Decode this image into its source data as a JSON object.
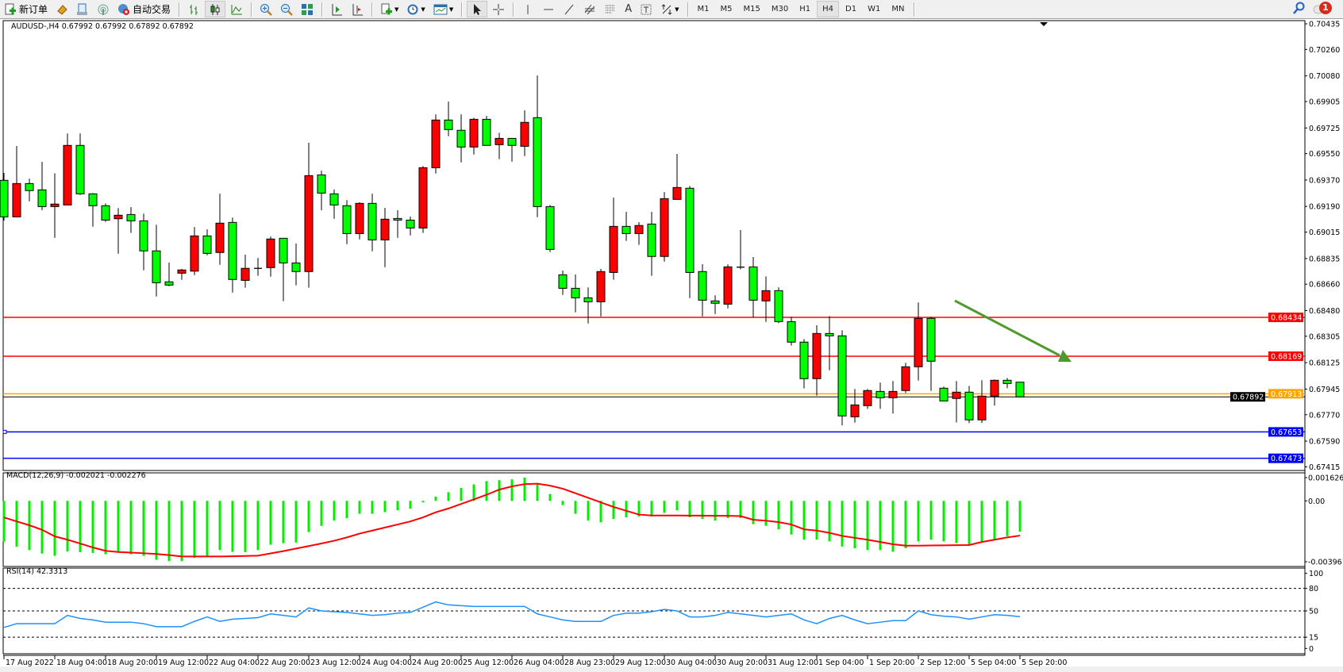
{
  "toolbar": {
    "new_order_label": "新订单",
    "auto_trading_label": "自动交易",
    "icons": [
      "new-order-icon",
      "market-watch-icon",
      "data-window-icon",
      "signals-icon",
      "auto-trading-icon",
      "bar-chart-icon",
      "candlestick-icon",
      "line-chart-icon",
      "zoom-in-icon",
      "zoom-out-icon",
      "tile-windows-icon",
      "auto-scroll-icon",
      "chart-shift-icon",
      "indicators-icon",
      "periods-icon",
      "templates-icon",
      "cursor-icon",
      "crosshair-icon",
      "vertical-line-icon",
      "horizontal-line-icon",
      "trendline-icon",
      "equidistant-channel-icon",
      "fibonacci-icon",
      "text-icon",
      "text-label-icon",
      "arrows-icon"
    ],
    "text_tool_label": "A",
    "timeframes": [
      "M1",
      "M5",
      "M15",
      "M30",
      "H1",
      "H4",
      "D1",
      "W1",
      "MN"
    ],
    "active_timeframe": "H4",
    "notification_count": "1"
  },
  "chart": {
    "title": "AUDUSD-,H4  0.67992 0.67992 0.67892 0.67892",
    "colors": {
      "bull_body": "#ff0000",
      "bear_body": "#00ff00",
      "wick": "#000000",
      "arrow": "#4f9a2f",
      "macd_hist": "#00ee00",
      "macd_signal": "#ff0000",
      "rsi": "#1e90ff"
    }
  },
  "chart_data": [
    {
      "type": "candlestick",
      "symbol": "AUDUSD-",
      "timeframe": "H4",
      "ohlc_fields": [
        "open",
        "high",
        "low",
        "close"
      ],
      "ohlc": [
        [
          0.69368,
          0.69418,
          0.69094,
          0.69119
        ],
        [
          0.69119,
          0.69602,
          0.69119,
          0.69346
        ],
        [
          0.69346,
          0.6938,
          0.69225,
          0.69298
        ],
        [
          0.69303,
          0.69494,
          0.69164,
          0.69189
        ],
        [
          0.69189,
          0.69416,
          0.68976,
          0.69206
        ],
        [
          0.692,
          0.69687,
          0.692,
          0.69606
        ],
        [
          0.69606,
          0.69687,
          0.69268,
          0.69276
        ],
        [
          0.69276,
          0.69281,
          0.69052,
          0.69195
        ],
        [
          0.69195,
          0.69211,
          0.69084,
          0.69097
        ],
        [
          0.69106,
          0.69179,
          0.68868,
          0.6913
        ],
        [
          0.69135,
          0.69186,
          0.69009,
          0.69092
        ],
        [
          0.69092,
          0.69141,
          0.68755,
          0.68887
        ],
        [
          0.68887,
          0.69065,
          0.68576,
          0.6867
        ],
        [
          0.68676,
          0.68807,
          0.68646,
          0.68654
        ],
        [
          0.68735,
          0.68764,
          0.6869,
          0.68757
        ],
        [
          0.68749,
          0.6905,
          0.68722,
          0.68989
        ],
        [
          0.68989,
          0.69034,
          0.68857,
          0.6887
        ],
        [
          0.68876,
          0.69277,
          0.68792,
          0.69076
        ],
        [
          0.69081,
          0.69114,
          0.68603,
          0.68692
        ],
        [
          0.68686,
          0.68861,
          0.68636,
          0.68768
        ],
        [
          0.68768,
          0.68839,
          0.68717,
          0.68768
        ],
        [
          0.68773,
          0.68985,
          0.68711,
          0.68968
        ],
        [
          0.68973,
          0.68973,
          0.68544,
          0.68805
        ],
        [
          0.68805,
          0.68937,
          0.68652,
          0.68746
        ],
        [
          0.68746,
          0.69624,
          0.68636,
          0.694
        ],
        [
          0.69405,
          0.69434,
          0.69164,
          0.69281
        ],
        [
          0.69276,
          0.69305,
          0.69106,
          0.692
        ],
        [
          0.69195,
          0.69233,
          0.68933,
          0.69005
        ],
        [
          0.69005,
          0.69218,
          0.68965,
          0.69211
        ],
        [
          0.69211,
          0.69277,
          0.68884,
          0.68962
        ],
        [
          0.68962,
          0.6918,
          0.68776,
          0.69103
        ],
        [
          0.69108,
          0.69164,
          0.68976,
          0.69097
        ],
        [
          0.69097,
          0.69121,
          0.68992,
          0.69043
        ],
        [
          0.69043,
          0.69465,
          0.69009,
          0.69454
        ],
        [
          0.69454,
          0.69818,
          0.69414,
          0.69779
        ],
        [
          0.69779,
          0.69905,
          0.69669,
          0.69714
        ],
        [
          0.69709,
          0.69818,
          0.6949,
          0.69595
        ],
        [
          0.69595,
          0.69795,
          0.69544,
          0.69784
        ],
        [
          0.69784,
          0.69807,
          0.69606,
          0.69606
        ],
        [
          0.69611,
          0.69692,
          0.69512,
          0.69654
        ],
        [
          0.69654,
          0.69654,
          0.69495,
          0.69606
        ],
        [
          0.696,
          0.69845,
          0.69533,
          0.69763
        ],
        [
          0.69795,
          0.70083,
          0.69117,
          0.69189
        ],
        [
          0.69189,
          0.692,
          0.68879,
          0.68897
        ],
        [
          0.68724,
          0.68753,
          0.68587,
          0.68632
        ],
        [
          0.68632,
          0.68726,
          0.68468,
          0.68567
        ],
        [
          0.68567,
          0.68638,
          0.68392,
          0.6854
        ],
        [
          0.6854,
          0.68764,
          0.68441,
          0.68746
        ],
        [
          0.6874,
          0.6925,
          0.6869,
          0.69054
        ],
        [
          0.69054,
          0.69153,
          0.68955,
          0.69005
        ],
        [
          0.69005,
          0.69083,
          0.68928,
          0.6906
        ],
        [
          0.6907,
          0.69153,
          0.68717,
          0.68849
        ],
        [
          0.68849,
          0.69288,
          0.68814,
          0.69243
        ],
        [
          0.69238,
          0.69548,
          0.69238,
          0.69319
        ],
        [
          0.69314,
          0.6933,
          0.68565,
          0.6874
        ],
        [
          0.68746,
          0.68796,
          0.68441,
          0.68551
        ],
        [
          0.68546,
          0.68584,
          0.68457,
          0.6853
        ],
        [
          0.68524,
          0.68795,
          0.68495,
          0.68778
        ],
        [
          0.68776,
          0.69029,
          0.68762,
          0.68776
        ],
        [
          0.68778,
          0.68845,
          0.68434,
          0.68551
        ],
        [
          0.68546,
          0.68713,
          0.68403,
          0.68616
        ],
        [
          0.68616,
          0.68639,
          0.68394,
          0.68405
        ],
        [
          0.68405,
          0.68438,
          0.68241,
          0.68265
        ],
        [
          0.68265,
          0.68286,
          0.67949,
          0.68016
        ],
        [
          0.68016,
          0.6838,
          0.679,
          0.68324
        ],
        [
          0.68324,
          0.68443,
          0.68073,
          0.68308
        ],
        [
          0.68308,
          0.68346,
          0.67697,
          0.67762
        ],
        [
          0.67756,
          0.67946,
          0.67716,
          0.67837
        ],
        [
          0.67832,
          0.67946,
          0.6781,
          0.67935
        ],
        [
          0.67929,
          0.67989,
          0.6781,
          0.67886
        ],
        [
          0.67886,
          0.68,
          0.67778,
          0.67929
        ],
        [
          0.67935,
          0.68124,
          0.67918,
          0.68097
        ],
        [
          0.68097,
          0.68535,
          0.68003,
          0.68427
        ],
        [
          0.68427,
          0.68438,
          0.67933,
          0.68135
        ],
        [
          0.67951,
          0.67962,
          0.67864,
          0.67864
        ],
        [
          0.67881,
          0.68,
          0.67718,
          0.67924
        ],
        [
          0.67924,
          0.67967,
          0.67713,
          0.67735
        ],
        [
          0.67735,
          0.68005,
          0.67713,
          0.67897
        ],
        [
          0.67897,
          0.6801,
          0.67832,
          0.68005
        ],
        [
          0.68005,
          0.68021,
          0.67951,
          0.67983
        ],
        [
          0.67992,
          0.67992,
          0.67892,
          0.67892
        ]
      ],
      "ylim": [
        0.67415,
        0.70435
      ],
      "y_ticks": [
        "0.70435",
        "0.70260",
        "0.70080",
        "0.69905",
        "0.69725",
        "0.69550",
        "0.69370",
        "0.69190",
        "0.69015",
        "0.68835",
        "0.68660",
        "0.68480",
        "0.68305",
        "0.68125",
        "0.67945",
        "0.67770",
        "0.67590",
        "0.67415"
      ],
      "x_tick_every_bars": 4,
      "x_ticks": [
        "17 Aug 2022",
        "18 Aug 04:00",
        "18 Aug 20:00",
        "19 Aug 12:00",
        "22 Aug 04:00",
        "22 Aug 20:00",
        "23 Aug 12:00",
        "24 Aug 04:00",
        "24 Aug 20:00",
        "25 Aug 12:00",
        "26 Aug 04:00",
        "28 Aug 23:00",
        "29 Aug 12:00",
        "30 Aug 04:00",
        "30 Aug 20:00",
        "31 Aug 12:00",
        "1 Sep 04:00",
        "1 Sep 20:00",
        "2 Sep 12:00",
        "5 Sep 04:00",
        "5 Sep 20:00"
      ],
      "levels": [
        {
          "price": "0.68434",
          "color": "#ff0000"
        },
        {
          "price": "0.68169",
          "color": "#ff0000"
        },
        {
          "price": "0.67913",
          "color": "#ffa500"
        },
        {
          "price": "0.67653",
          "color": "#0000ff"
        },
        {
          "price": "0.67473",
          "color": "#0000ff"
        }
      ],
      "bid": {
        "price": "0.67892",
        "color": "#000000"
      }
    },
    {
      "type": "bar",
      "title": "MACD(12,26,9) -0.002021 -0.002276",
      "ylim": [
        -0.003961,
        0.001626
      ],
      "y_ticks": [
        "0.001626",
        "0.00",
        "-0.003961"
      ],
      "histogram": [
        -0.00268,
        -0.00301,
        -0.00323,
        -0.00346,
        -0.00361,
        -0.00332,
        -0.00337,
        -0.00342,
        -0.00351,
        -0.0034,
        -0.00351,
        -0.00361,
        -0.00387,
        -0.00396,
        -0.00396,
        -0.00375,
        -0.00363,
        -0.00323,
        -0.00335,
        -0.00337,
        -0.00323,
        -0.00288,
        -0.00278,
        -0.00274,
        -0.00205,
        -0.00164,
        -0.0013,
        -0.00113,
        -0.00085,
        -0.00085,
        -0.00074,
        -0.00062,
        -0.00051,
        -0.0001,
        0.00028,
        0.00057,
        0.00085,
        0.00108,
        0.0013,
        0.00136,
        0.00141,
        0.00153,
        0.00108,
        0.00045,
        -0.00028,
        -0.00085,
        -0.0013,
        -0.00141,
        -0.00119,
        -0.00108,
        -0.00102,
        -0.00102,
        -0.00079,
        -0.00062,
        -0.00108,
        -0.00119,
        -0.0013,
        -0.00113,
        -0.00113,
        -0.00153,
        -0.00164,
        -0.00187,
        -0.00221,
        -0.00255,
        -0.00255,
        -0.00266,
        -0.003,
        -0.00311,
        -0.00323,
        -0.00323,
        -0.00334,
        -0.00311,
        -0.00266,
        -0.00255,
        -0.00266,
        -0.00277,
        -0.00289,
        -0.00266,
        -0.00255,
        -0.00232,
        -0.00202
      ],
      "signal": [
        -0.00109,
        -0.00135,
        -0.0016,
        -0.0019,
        -0.00233,
        -0.00255,
        -0.0028,
        -0.00306,
        -0.00328,
        -0.00336,
        -0.0034,
        -0.00344,
        -0.00349,
        -0.00356,
        -0.00365,
        -0.00365,
        -0.00365,
        -0.00365,
        -0.00364,
        -0.00362,
        -0.0036,
        -0.00345,
        -0.0033,
        -0.00313,
        -0.00297,
        -0.0028,
        -0.00262,
        -0.0024,
        -0.00215,
        -0.00195,
        -0.00175,
        -0.00155,
        -0.00135,
        -0.00108,
        -0.00075,
        -0.0005,
        -0.0002,
        0.0001,
        0.0004,
        0.00074,
        0.00095,
        0.0011,
        0.00113,
        0.001,
        0.0008,
        0.0005,
        0.0002,
        -0.0001,
        -0.0004,
        -0.00065,
        -0.0009,
        -0.00096,
        -0.00096,
        -0.00096,
        -0.00097,
        -0.00097,
        -0.00098,
        -0.00098,
        -0.001,
        -0.00124,
        -0.0013,
        -0.0014,
        -0.00155,
        -0.00187,
        -0.00195,
        -0.0021,
        -0.0023,
        -0.00243,
        -0.00255,
        -0.0027,
        -0.00285,
        -0.00294,
        -0.00294,
        -0.00293,
        -0.00292,
        -0.00291,
        -0.0029,
        -0.0027,
        -0.00255,
        -0.0024,
        -0.00228
      ]
    },
    {
      "type": "line",
      "title": "RSI(14) 42.3313",
      "ylim": [
        0,
        100
      ],
      "y_ticks": [
        "100",
        "80",
        "50",
        "15",
        "0"
      ],
      "levels": [
        80,
        50,
        15
      ],
      "values": [
        28,
        33,
        33,
        33,
        33,
        44,
        40,
        38,
        35,
        35,
        35,
        33,
        29,
        29,
        29,
        36,
        42,
        36,
        39,
        40,
        41,
        46,
        44,
        42,
        54,
        50,
        49,
        48,
        46,
        44,
        45,
        47,
        48,
        55,
        62,
        58,
        57,
        56,
        56,
        56,
        56,
        56,
        46,
        42,
        38,
        36,
        36,
        36,
        44,
        47,
        47,
        49,
        52,
        50,
        42,
        42,
        44,
        48,
        46,
        44,
        42,
        44,
        46,
        38,
        33,
        40,
        44,
        38,
        33,
        35,
        37,
        37,
        50,
        45,
        43,
        42,
        39,
        42,
        45,
        44,
        42.3313
      ]
    }
  ]
}
